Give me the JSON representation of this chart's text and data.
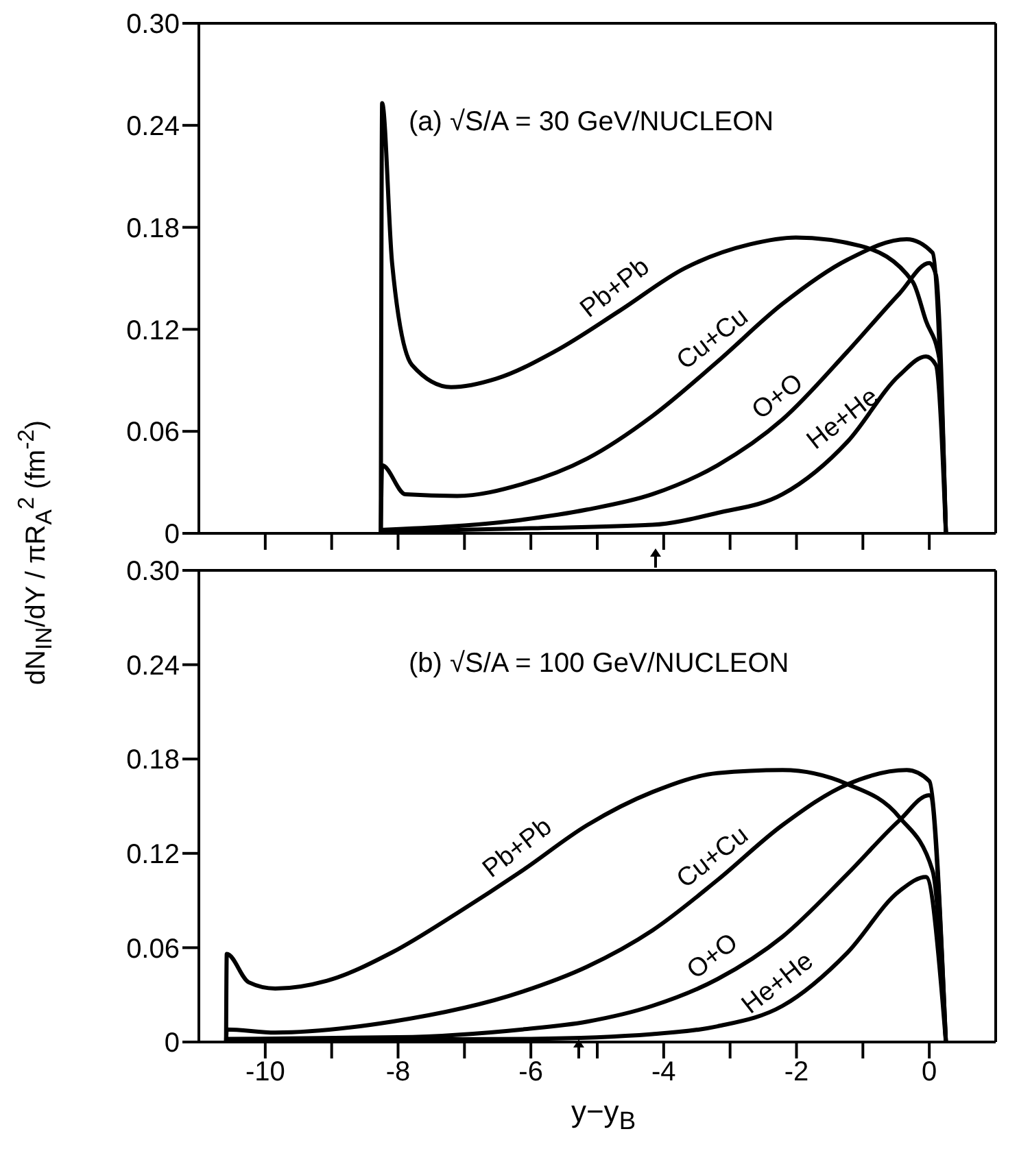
{
  "chart_data": [
    {
      "type": "line",
      "title": "(a)  √S/A = 30 GeV/NUCLEON",
      "ylabel": "dN$_{IN}$/dY / πR$_{A}$$^{2}$ (fm$^{-2}$)",
      "xlim": [
        -11,
        1
      ],
      "xticks": [
        {
          "value": -10,
          "label": null
        },
        {
          "value": -9,
          "label": null
        },
        {
          "value": -8,
          "label": null
        },
        {
          "value": -7,
          "label": null
        },
        {
          "value": -6,
          "label": null
        },
        {
          "value": -5,
          "label": null
        },
        {
          "value": -4,
          "label": null
        },
        {
          "value": -3,
          "label": null
        },
        {
          "value": -2,
          "label": null
        },
        {
          "value": -1,
          "label": null
        },
        {
          "value": 0,
          "label": null
        }
      ],
      "ylim": [
        0,
        0.3
      ],
      "yticks": [
        0,
        0.06,
        0.12,
        0.18,
        0.24,
        {
          "value": 0.3,
          "label": "0.30"
        }
      ],
      "tick_labels": "y",
      "grid": false,
      "legend": false,
      "marker": "none",
      "line_style": "solid",
      "series": [
        {
          "name": "Pb+Pb",
          "color": "#000000",
          "x": [
            -8.26,
            -8.24,
            -8.09,
            -7.79,
            -7.2,
            -6.52,
            -5.64,
            -4.66,
            -3.68,
            -2.7,
            -2.01,
            -1.03,
            -0.25,
            -0.05,
            0.15,
            0.25
          ],
          "values": [
            0,
            0.253,
            0.159,
            0.099,
            0.086,
            0.091,
            0.107,
            0.131,
            0.156,
            0.17,
            0.174,
            0.169,
            0.148,
            0.125,
            0.103,
            0
          ]
        },
        {
          "name": "Cu+Cu",
          "color": "#000000",
          "x": [
            -8.26,
            -8.24,
            -7.89,
            -7.11,
            -6.13,
            -5.15,
            -4.17,
            -3.19,
            -2.21,
            -1.23,
            -0.34,
            0.05,
            0.25
          ],
          "values": [
            0,
            0.04,
            0.023,
            0.022,
            0.029,
            0.044,
            0.069,
            0.101,
            0.135,
            0.161,
            0.173,
            0.165,
            0
          ]
        },
        {
          "name": "O+O",
          "color": "#000000",
          "x": [
            -8.26,
            -6.13,
            -5.15,
            -4.17,
            -3.19,
            -2.21,
            -1.23,
            -0.45,
            0,
            0.1,
            0.25
          ],
          "values": [
            0.002,
            0.008,
            0.014,
            0.023,
            0.04,
            0.067,
            0.107,
            0.141,
            0.159,
            0.152,
            0
          ]
        },
        {
          "name": "He+He",
          "color": "#000000",
          "x": [
            -8.26,
            -6,
            -4.17,
            -3.19,
            -2.21,
            -1.23,
            -0.45,
            -0.05,
            0.1,
            0.25
          ],
          "values": [
            0.001,
            0.003,
            0.005,
            0.012,
            0.023,
            0.054,
            0.093,
            0.104,
            0.099,
            0
          ]
        }
      ]
    },
    {
      "type": "line",
      "title": "(b)  √S/A = 100 GeV/NUCLEON",
      "xlabel": "y−y$_{B}$",
      "xlim": [
        -11,
        1
      ],
      "xticks": [
        -10,
        {
          "value": -9,
          "label": null
        },
        -8,
        {
          "value": -7,
          "label": null
        },
        -6,
        {
          "value": -5,
          "label": null
        },
        -4,
        {
          "value": -3,
          "label": null
        },
        -2,
        {
          "value": -1,
          "label": null
        },
        0
      ],
      "ylim": [
        0,
        0.3
      ],
      "yticks": [
        0,
        0.06,
        0.12,
        0.18,
        0.24,
        {
          "value": 0.3,
          "label": "0.30"
        }
      ],
      "grid": false,
      "legend": false,
      "marker": "none",
      "line_style": "solid",
      "series": [
        {
          "name": "Pb+Pb",
          "color": "#000000",
          "x": [
            -10.59,
            -10.58,
            -10.25,
            -9.85,
            -9.07,
            -8.09,
            -7.11,
            -6.13,
            -5.15,
            -4.17,
            -3.19,
            -2.21,
            -1.23,
            -0.45,
            0.05,
            0.25
          ],
          "values": [
            0,
            0.056,
            0.038,
            0.034,
            0.039,
            0.057,
            0.082,
            0.109,
            0.138,
            0.159,
            0.171,
            0.173,
            0.164,
            0.143,
            0.109,
            0
          ]
        },
        {
          "name": "Cu+Cu",
          "color": "#000000",
          "x": [
            -10.59,
            -10.58,
            -9.85,
            -8.09,
            -6.13,
            -5.15,
            -4.17,
            -3.19,
            -2.21,
            -1.23,
            -0.34,
            0,
            0.25
          ],
          "values": [
            0,
            0.008,
            0.006,
            0.013,
            0.032,
            0.048,
            0.071,
            0.103,
            0.138,
            0.164,
            0.173,
            0.166,
            0
          ]
        },
        {
          "name": "O+O",
          "color": "#000000",
          "x": [
            -10.59,
            -8,
            -6.13,
            -5.15,
            -4.17,
            -3.19,
            -2.21,
            -1.23,
            -0.45,
            0,
            0.25
          ],
          "values": [
            0.002,
            0.003,
            0.008,
            0.013,
            0.023,
            0.04,
            0.067,
            0.107,
            0.141,
            0.157,
            0
          ]
        },
        {
          "name": "He+He",
          "color": "#000000",
          "x": [
            -10.59,
            -6,
            -4.17,
            -3.19,
            -2.21,
            -1.23,
            -0.45,
            -0.05,
            0.25
          ],
          "values": [
            0.001,
            0.002,
            0.005,
            0.01,
            0.023,
            0.057,
            0.096,
            0.105,
            0
          ]
        }
      ]
    }
  ]
}
